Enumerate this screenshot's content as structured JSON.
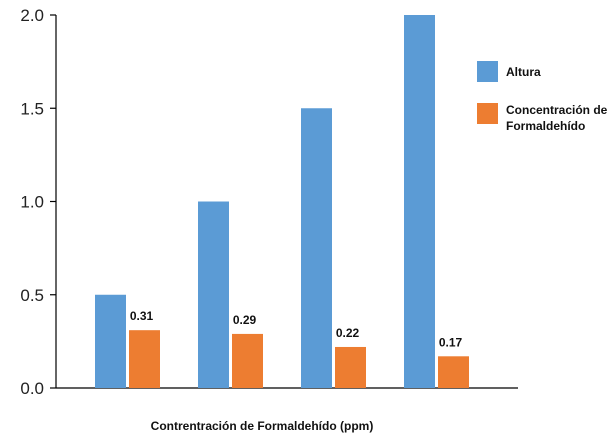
{
  "chart_data": {
    "type": "bar",
    "title": "",
    "xlabel": "Contrentración de Formaldehído (ppm)",
    "ylabel": "",
    "ylim": [
      0,
      2.0
    ],
    "yticks": [
      "0.0",
      "0.5",
      "1.0",
      "1.5",
      "2.0"
    ],
    "grid": false,
    "legend_position": "right",
    "categories": [
      "",
      "",
      "",
      ""
    ],
    "series": [
      {
        "name": "Altura",
        "color": "#5b9bd5",
        "values": [
          0.5,
          1.0,
          1.5,
          2.0
        ]
      },
      {
        "name": "Concentración de Formaldehído",
        "color": "#ed7d31",
        "values": [
          0.31,
          0.29,
          0.22,
          0.17
        ]
      }
    ],
    "data_labels": {
      "series_index": 1,
      "labels": [
        "0.31",
        "0.29",
        "0.22",
        "0.17"
      ]
    },
    "legend": {
      "items": [
        {
          "lines": [
            "Altura"
          ],
          "color": "#5b9bd5"
        },
        {
          "lines": [
            "Concentración de",
            "Formaldehído"
          ],
          "color": "#ed7d31"
        }
      ]
    }
  }
}
